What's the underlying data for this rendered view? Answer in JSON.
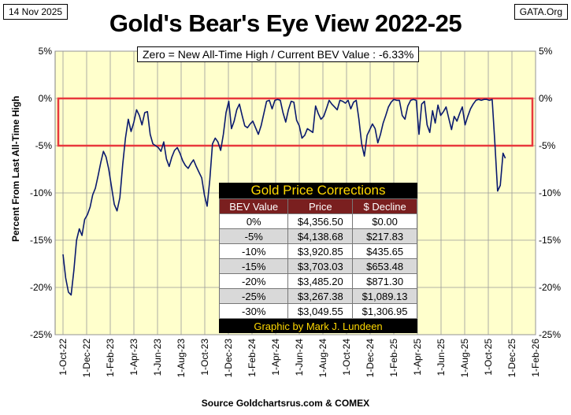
{
  "header": {
    "date": "14 Nov 2025",
    "source_tag": "GATA.Org",
    "title": "Gold's Bear's Eye View 2022-25",
    "subtitle": "Zero = New All-Time High / Current  BEV Value : -6.33%"
  },
  "footer": "Source Goldchartsrus.com & COMEX",
  "table": {
    "title": "Gold Price Corrections",
    "headers": [
      "BEV Value",
      "Price",
      "$ Decline"
    ],
    "rows": [
      [
        "0%",
        "$4,356.50",
        "$0.00"
      ],
      [
        "-5%",
        "$4,138.68",
        "$217.83"
      ],
      [
        "-10%",
        "$3,920.85",
        "$435.65"
      ],
      [
        "-15%",
        "$3,703.03",
        "$653.48"
      ],
      [
        "-20%",
        "$3,485.20",
        "$871.30"
      ],
      [
        "-25%",
        "$3,267.38",
        "$1,089.13"
      ],
      [
        "-30%",
        "$3,049.55",
        "$1,306.95"
      ]
    ],
    "credit": "Graphic by Mark J. Lundeen"
  },
  "colors": {
    "plot_bg": "#ffffcc",
    "line": "#0a1a6e",
    "highlight_box": "#e8383d",
    "table_title": "#ffd800",
    "table_header": "#7a1f1f"
  },
  "chart_data": {
    "type": "line",
    "ylabel": "Percent  From  Last  All-Time  High",
    "ylim": [
      -25,
      5
    ],
    "yticks": [
      5,
      0,
      -5,
      -10,
      -15,
      -20,
      -25
    ],
    "ytick_labels": [
      "5%",
      "0%",
      "-5%",
      "-10%",
      "-15%",
      "-20%",
      "-25%"
    ],
    "xticks": [
      "1-Oct-22",
      "1-Dec-22",
      "1-Feb-23",
      "1-Apr-23",
      "1-Jun-23",
      "1-Aug-23",
      "1-Oct-23",
      "1-Dec-23",
      "1-Feb-24",
      "1-Apr-24",
      "1-Jun-24",
      "1-Aug-24",
      "1-Oct-24",
      "1-Dec-24",
      "1-Feb-25",
      "1-Apr-25",
      "1-Jun-25",
      "1-Aug-25",
      "1-Oct-25",
      "1-Dec-25",
      "1-Feb-26"
    ],
    "grid": true,
    "highlight_band": [
      -5,
      0
    ],
    "current_value": -6.33,
    "series": [
      {
        "x": [
          "2022-10-01",
          "2022-10-08",
          "2022-10-15",
          "2022-10-22",
          "2022-10-29",
          "2022-11-05",
          "2022-11-12",
          "2022-11-19",
          "2022-11-26",
          "2022-12-03",
          "2022-12-10",
          "2022-12-17",
          "2022-12-24",
          "2022-12-31",
          "2023-01-07",
          "2023-01-14",
          "2023-01-21",
          "2023-01-28",
          "2023-02-04",
          "2023-02-11",
          "2023-02-18",
          "2023-02-25",
          "2023-03-04",
          "2023-03-11",
          "2023-03-18",
          "2023-03-25",
          "2023-04-01",
          "2023-04-08",
          "2023-04-15",
          "2023-04-22",
          "2023-04-29",
          "2023-05-06",
          "2023-05-13",
          "2023-05-20",
          "2023-05-27",
          "2023-06-03",
          "2023-06-10",
          "2023-06-17",
          "2023-06-24",
          "2023-07-01",
          "2023-07-08",
          "2023-07-15",
          "2023-07-22",
          "2023-07-29",
          "2023-08-05",
          "2023-08-12",
          "2023-08-19",
          "2023-08-26",
          "2023-09-02",
          "2023-09-09",
          "2023-09-16",
          "2023-09-23",
          "2023-09-30",
          "2023-10-07",
          "2023-10-14",
          "2023-10-21",
          "2023-10-28",
          "2023-11-04",
          "2023-11-11",
          "2023-11-18",
          "2023-11-25",
          "2023-12-02",
          "2023-12-09",
          "2023-12-16",
          "2023-12-23",
          "2023-12-30",
          "2024-01-06",
          "2024-01-13",
          "2024-01-20",
          "2024-01-27",
          "2024-02-03",
          "2024-02-10",
          "2024-02-17",
          "2024-02-24",
          "2024-03-02",
          "2024-03-09",
          "2024-03-16",
          "2024-03-23",
          "2024-03-30",
          "2024-04-06",
          "2024-04-13",
          "2024-04-20",
          "2024-04-27",
          "2024-05-04",
          "2024-05-11",
          "2024-05-18",
          "2024-05-25",
          "2024-06-01",
          "2024-06-08",
          "2024-06-15",
          "2024-06-22",
          "2024-06-29",
          "2024-07-06",
          "2024-07-13",
          "2024-07-20",
          "2024-07-27",
          "2024-08-03",
          "2024-08-10",
          "2024-08-17",
          "2024-08-24",
          "2024-08-31",
          "2024-09-07",
          "2024-09-14",
          "2024-09-21",
          "2024-09-28",
          "2024-10-05",
          "2024-10-12",
          "2024-10-19",
          "2024-10-26",
          "2024-11-02",
          "2024-11-09",
          "2024-11-16",
          "2024-11-23",
          "2024-11-30",
          "2024-12-07",
          "2024-12-14",
          "2024-12-21",
          "2024-12-28",
          "2025-01-04",
          "2025-01-11",
          "2025-01-18",
          "2025-01-25",
          "2025-02-01",
          "2025-02-08",
          "2025-02-15",
          "2025-02-22",
          "2025-03-01",
          "2025-03-08",
          "2025-03-15",
          "2025-03-22",
          "2025-03-29",
          "2025-04-05",
          "2025-04-12",
          "2025-04-19",
          "2025-04-26",
          "2025-05-03",
          "2025-05-10",
          "2025-05-17",
          "2025-05-24",
          "2025-05-31",
          "2025-06-07",
          "2025-06-14",
          "2025-06-21",
          "2025-06-28",
          "2025-07-05",
          "2025-07-12",
          "2025-07-19",
          "2025-07-26",
          "2025-08-02",
          "2025-08-09",
          "2025-08-16",
          "2025-08-23",
          "2025-08-30",
          "2025-09-06",
          "2025-09-13",
          "2025-09-20",
          "2025-09-27",
          "2025-10-04",
          "2025-10-11",
          "2025-10-18",
          "2025-10-25",
          "2025-11-01",
          "2025-11-08",
          "2025-11-14"
        ],
        "y": [
          -16.5,
          -19,
          -20.5,
          -20.8,
          -18.2,
          -15,
          -13.8,
          -14.5,
          -12.8,
          -12.3,
          -11.5,
          -10.2,
          -9.5,
          -8.2,
          -6.8,
          -5.6,
          -6.2,
          -7.5,
          -9.3,
          -11.2,
          -11.9,
          -10.5,
          -7,
          -4.2,
          -2.2,
          -3.5,
          -2.5,
          -1.2,
          -1.8,
          -2.8,
          -1.5,
          -1.4,
          -3.8,
          -4.8,
          -5,
          -5.2,
          -5.6,
          -4.6,
          -6.4,
          -7.2,
          -6.2,
          -5.5,
          -5.2,
          -5.8,
          -6.6,
          -7.1,
          -7.4,
          -6.9,
          -6.5,
          -7.2,
          -7.8,
          -8.4,
          -10.2,
          -11.4,
          -8.6,
          -4.8,
          -4.2,
          -4.6,
          -5.5,
          -3.8,
          -1.5,
          -0.3,
          -3.2,
          -2.4,
          -1.2,
          -0.6,
          -1.8,
          -2.9,
          -3.1,
          -2.7,
          -2.4,
          -3.1,
          -3.8,
          -2.9,
          -1.6,
          -0.3,
          -0.2,
          -1.1,
          -0.2,
          -0.1,
          -0.2,
          -1.5,
          -2.5,
          -1.2,
          -0.3,
          -0.4,
          -2.3,
          -2.9,
          -4.2,
          -3.9,
          -3.2,
          -3.4,
          -3.6,
          -0.8,
          -1.6,
          -2.2,
          -1.9,
          -1.1,
          -0.2,
          -0.6,
          -0.9,
          -1.2,
          -0.2,
          -0.3,
          -0.5,
          -0.2,
          -1.1,
          -0.4,
          -0.2,
          -2.2,
          -4.8,
          -6.1,
          -3.9,
          -3.3,
          -2.7,
          -3.2,
          -4.7,
          -3.8,
          -2.6,
          -1.8,
          -0.9,
          -0.4,
          -0.1,
          -0.2,
          -0.2,
          -1.8,
          -2.2,
          -0.8,
          -0.2,
          -0.1,
          -0.2,
          -3.8,
          -0.6,
          -0.3,
          -2.8,
          -3.6,
          -1.3,
          -2.6,
          -0.7,
          -1.8,
          -1.4,
          -0.9,
          -2.1,
          -3.3,
          -1.9,
          -2.4,
          -1.6,
          -0.9,
          -2.8,
          -1.9,
          -1.1,
          -0.6,
          -0.2,
          -0.1,
          -0.2,
          -0.1,
          -0.1,
          -0.2,
          -0.1,
          -4.8,
          -9.8,
          -9.2,
          -5.8,
          -6.33
        ]
      }
    ]
  }
}
